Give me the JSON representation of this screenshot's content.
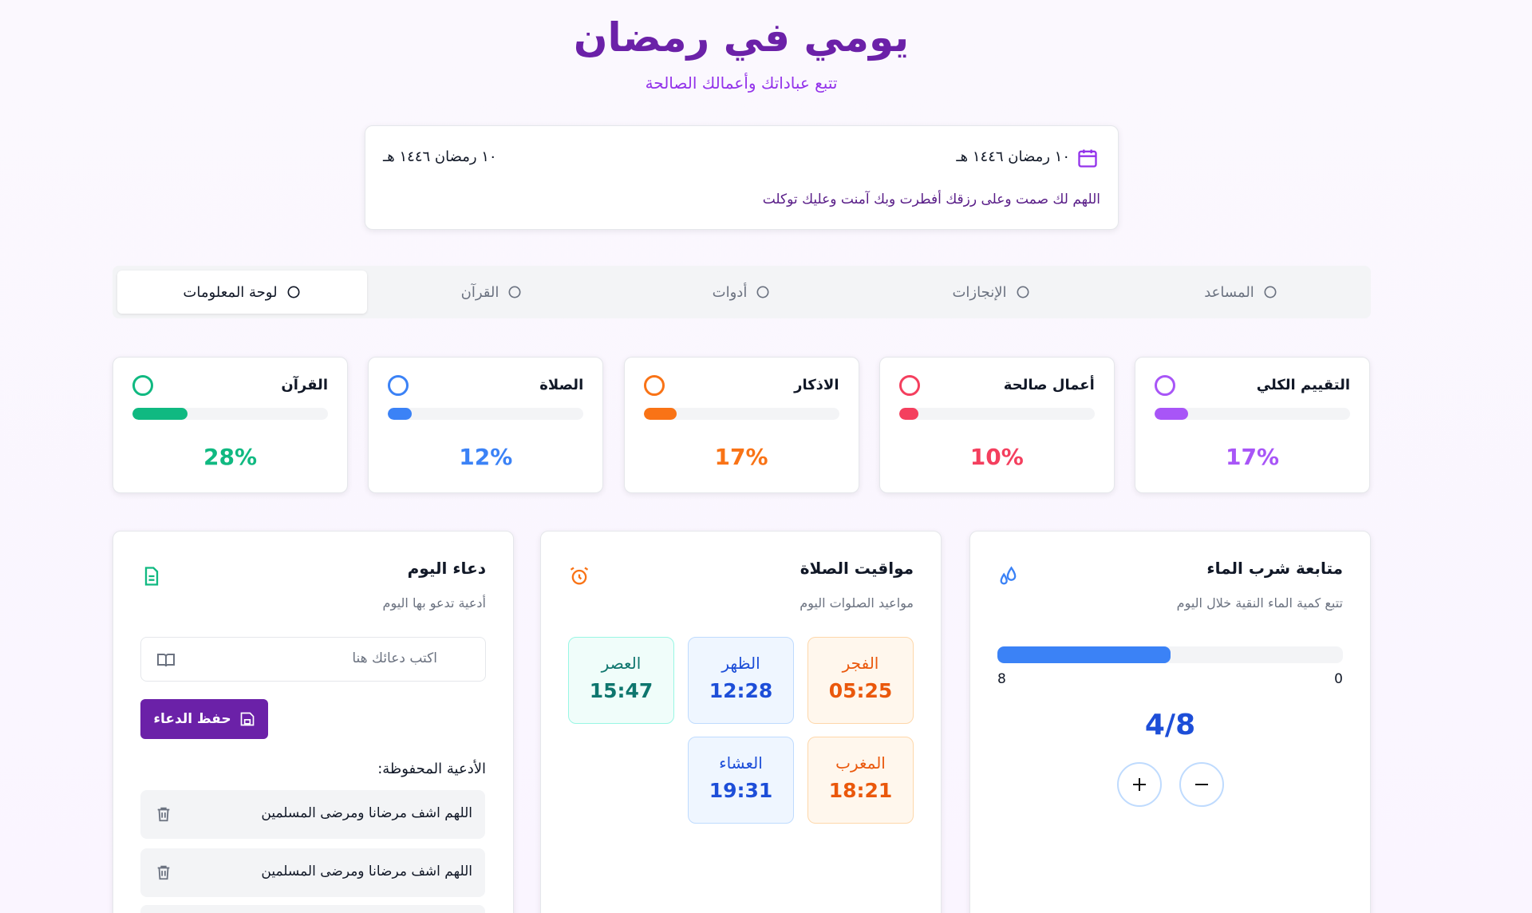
{
  "header": {
    "title": "يومي في رمضان",
    "subtitle": "تتبع عباداتك وأعمالك الصالحة"
  },
  "date_card": {
    "hijri_date": "١٠ رمضان ١٤٤٦ هـ",
    "hijri_date_alt": "١٠ رمضان ١٤٤٦ هـ",
    "dua": "اللهم لك صمت وعلى رزقك أفطرت وبك آمنت وعليك توكلت"
  },
  "tabs": [
    {
      "label": "المساعد",
      "active": false
    },
    {
      "label": "الإنجازات",
      "active": false
    },
    {
      "label": "أدوات",
      "active": false
    },
    {
      "label": "القرآن",
      "active": false
    },
    {
      "label": "لوحة المعلومات",
      "active": true
    }
  ],
  "stats": [
    {
      "label": "التقييم الكلي",
      "percent": 17,
      "percent_label": "17%",
      "color": "#a855f7"
    },
    {
      "label": "أعمال صالحة",
      "percent": 10,
      "percent_label": "10%",
      "color": "#f43f5e"
    },
    {
      "label": "الاذكار",
      "percent": 17,
      "percent_label": "17%",
      "color": "#f97316"
    },
    {
      "label": "الصلاة",
      "percent": 12,
      "percent_label": "12%",
      "color": "#3b82f6"
    },
    {
      "label": "القرآن",
      "percent": 28,
      "percent_label": "28%",
      "color": "#10b981"
    }
  ],
  "water": {
    "title": "متابعة شرب الماء",
    "subtitle": "تتبع كمية الماء النقية خلال اليوم",
    "current": 4,
    "max": 8,
    "min": 0,
    "value_label": "4/8",
    "color": "#3b82f6"
  },
  "prayer_times": {
    "title": "مواقيت الصلاة",
    "subtitle": "مواعيد الصلوات اليوم",
    "prayers": [
      {
        "name": "الفجر",
        "time": "05:25"
      },
      {
        "name": "الظهر",
        "time": "12:28"
      },
      {
        "name": "العصر",
        "time": "15:47"
      },
      {
        "name": "المغرب",
        "time": "18:21"
      },
      {
        "name": "العشاء",
        "time": "19:31"
      }
    ]
  },
  "dua_card": {
    "title": "دعاء اليوم",
    "subtitle": "أدعية تدعو بها اليوم",
    "input_placeholder": "اكتب دعائك هنا",
    "save_button": "حفظ الدعاء",
    "saved_heading": "الأدعية المحفوظة:",
    "saved": [
      "اللهم اشف مرضانا ومرضى المسلمين",
      "اللهم اشف مرضانا ومرضى المسلمين"
    ]
  }
}
